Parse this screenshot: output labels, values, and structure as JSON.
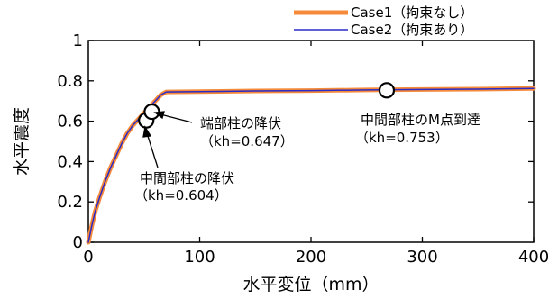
{
  "chart_data": {
    "type": "line",
    "xlabel": "水平変位（mm）",
    "ylabel": "水平震度",
    "xlim": [
      0,
      400
    ],
    "ylim": [
      0,
      1
    ],
    "xticks": [
      0,
      100,
      200,
      300,
      400
    ],
    "yticks": [
      0,
      0.2,
      0.4,
      0.6,
      0.8,
      1
    ],
    "ytick_labels": [
      "0",
      "0.2",
      "0.4",
      "0.6",
      "0.8",
      "1"
    ],
    "grid": false,
    "legend_position": "top-right",
    "series": [
      {
        "name": "Case1（拘束なし）",
        "color": "#f58a3a",
        "x": [
          0,
          3,
          6,
          10,
          15,
          20,
          25,
          30,
          35,
          40,
          45,
          50,
          55,
          60,
          65,
          70,
          100,
          150,
          200,
          250,
          300,
          350,
          400
        ],
        "y": [
          0,
          0.08,
          0.15,
          0.22,
          0.3,
          0.37,
          0.43,
          0.49,
          0.54,
          0.58,
          0.61,
          0.64,
          0.67,
          0.7,
          0.73,
          0.745,
          0.747,
          0.75,
          0.752,
          0.755,
          0.757,
          0.759,
          0.762
        ]
      },
      {
        "name": "Case2（拘束あり）",
        "color": "#2a2ac8",
        "x": [
          0,
          3,
          6,
          10,
          15,
          20,
          25,
          30,
          35,
          40,
          45,
          50,
          55,
          60,
          65,
          70,
          100,
          150,
          200,
          250,
          300,
          350,
          400
        ],
        "y": [
          0,
          0.08,
          0.15,
          0.22,
          0.3,
          0.37,
          0.43,
          0.49,
          0.54,
          0.58,
          0.61,
          0.64,
          0.67,
          0.7,
          0.73,
          0.745,
          0.747,
          0.75,
          0.752,
          0.755,
          0.757,
          0.759,
          0.762
        ]
      }
    ],
    "markers": [
      {
        "x": 52,
        "y": 0.604
      },
      {
        "x": 57,
        "y": 0.647
      },
      {
        "x": 268,
        "y": 0.753
      }
    ],
    "annotations": [
      {
        "line1": "端部柱の降伏",
        "line2": "（kh=0.647）"
      },
      {
        "line1": "中間部柱の降伏",
        "line2": "（kh=0.604）"
      },
      {
        "line1": "中間部柱のM点到達",
        "line2": "（kh=0.753）"
      }
    ]
  }
}
